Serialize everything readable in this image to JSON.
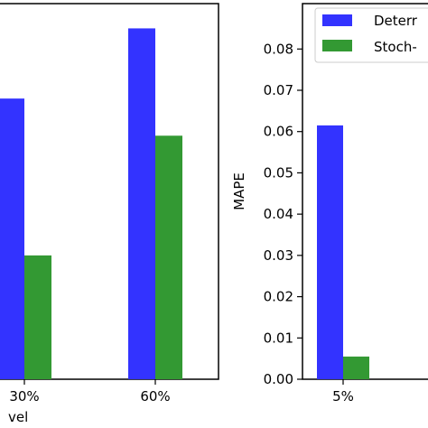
{
  "chart_data": [
    {
      "type": "bar",
      "categories": [
        "30%",
        "60%"
      ],
      "xlabel": "vel",
      "ylabel": "",
      "series": [
        {
          "name": "Deterr",
          "color": "#3333ff",
          "values": [
            0.068,
            0.085
          ]
        },
        {
          "name": "Stoch",
          "color": "#339933",
          "values": [
            0.03,
            0.059
          ]
        }
      ],
      "ylim": [
        0,
        0.091
      ],
      "grid": false
    },
    {
      "type": "bar",
      "categories": [
        "5%"
      ],
      "xlabel": "",
      "ylabel": "MAPE",
      "yticks": [
        "0.00",
        "0.01",
        "0.02",
        "0.03",
        "0.04",
        "0.05",
        "0.06",
        "0.07",
        "0.08"
      ],
      "ylim": [
        0,
        0.091
      ],
      "series": [
        {
          "name": "Deterr",
          "color": "#3333ff",
          "values": [
            0.0615
          ]
        },
        {
          "name": "Stoch",
          "color": "#339933",
          "values": [
            0.0055
          ]
        }
      ],
      "legend": {
        "placement": "top-right",
        "entries": [
          {
            "label": "Deterr",
            "color": "#3333ff"
          },
          {
            "label": "Stoch-",
            "color": "#339933"
          }
        ]
      },
      "grid": false
    }
  ]
}
